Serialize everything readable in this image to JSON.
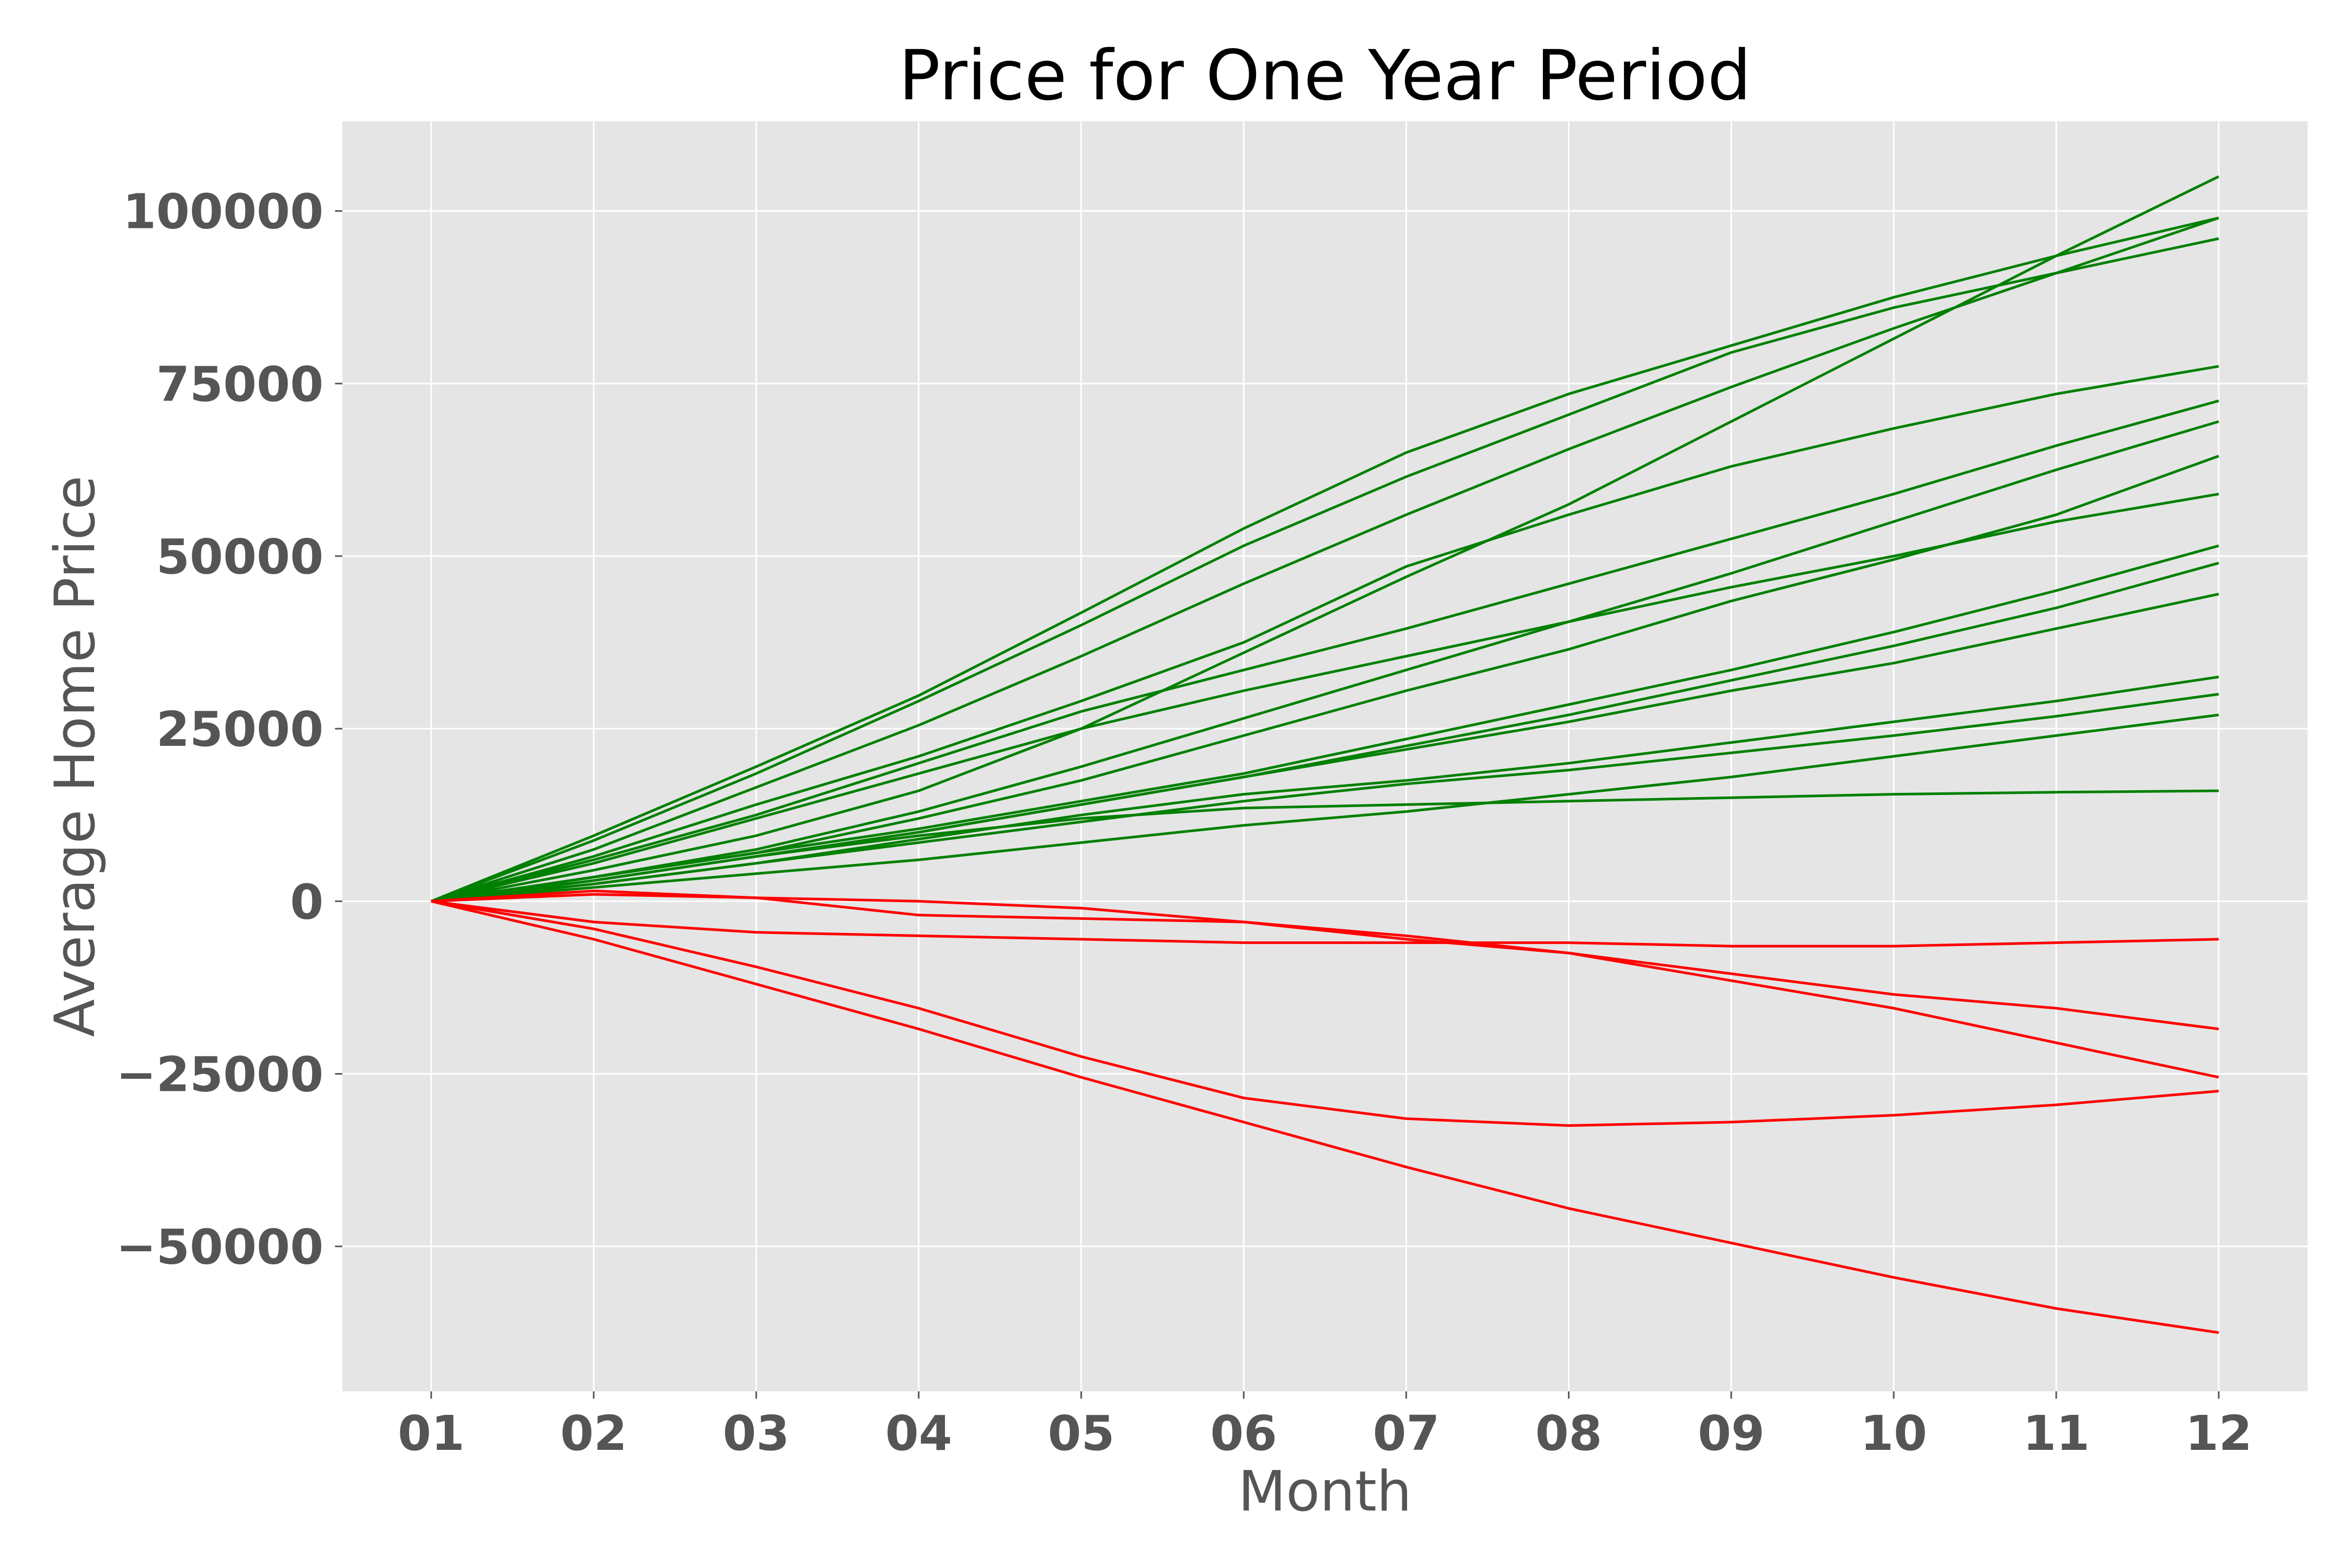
{
  "chart_data": {
    "type": "line",
    "title": "Price for One Year Period",
    "xlabel": "Month",
    "ylabel": "Average Home Price",
    "categories": [
      "01",
      "02",
      "03",
      "04",
      "05",
      "06",
      "07",
      "08",
      "09",
      "10",
      "11",
      "12"
    ],
    "yticks": [
      "100000",
      "75000",
      "50000",
      "25000",
      "0",
      "−25000",
      "−50000"
    ],
    "ytick_values": [
      100000,
      75000,
      50000,
      25000,
      0,
      -25000,
      -50000
    ],
    "ylim": [
      -71000,
      113000
    ],
    "grid": true,
    "style": {
      "background": "#e5e5e5",
      "grid_color": "#ffffff",
      "positive_color": "#008000",
      "negative_color": "#ff0000"
    },
    "series": [
      {
        "color": "#008000",
        "values": [
          0,
          9500,
          19500,
          29800,
          41800,
          54000,
          65000,
          73500,
          80500,
          87500,
          93500,
          99000
        ]
      },
      {
        "color": "#008000",
        "values": [
          0,
          8800,
          18500,
          29000,
          40000,
          51500,
          61500,
          70500,
          79500,
          86000,
          91000,
          96000
        ]
      },
      {
        "color": "#008000",
        "values": [
          0,
          7500,
          16500,
          25500,
          35500,
          46000,
          56000,
          65500,
          74500,
          83000,
          91000,
          99000
        ]
      },
      {
        "color": "#008000",
        "values": [
          0,
          4500,
          9500,
          16000,
          25000,
          36000,
          47000,
          57500,
          69500,
          81500,
          93500,
          105000
        ]
      },
      {
        "color": "#008000",
        "values": [
          0,
          6500,
          14000,
          21000,
          29000,
          37500,
          48500,
          56000,
          63000,
          68500,
          73500,
          77500
        ]
      },
      {
        "color": "#008000",
        "values": [
          0,
          6000,
          12500,
          20000,
          27500,
          33500,
          39500,
          46000,
          52500,
          59000,
          66000,
          72500
        ]
      },
      {
        "color": "#008000",
        "values": [
          0,
          5500,
          12000,
          18500,
          25000,
          30500,
          35500,
          40500,
          47500,
          55000,
          62500,
          69500
        ]
      },
      {
        "color": "#008000",
        "values": [
          0,
          3500,
          7500,
          13000,
          19500,
          26500,
          33500,
          40500,
          45500,
          50000,
          55000,
          59000
        ]
      },
      {
        "color": "#008000",
        "values": [
          0,
          3500,
          7000,
          12000,
          17500,
          24000,
          30500,
          36500,
          43500,
          49500,
          56000,
          64500
        ]
      },
      {
        "color": "#008000",
        "values": [
          0,
          3500,
          7000,
          10500,
          14500,
          18500,
          23500,
          28500,
          33500,
          39000,
          45000,
          51500
        ]
      },
      {
        "color": "#008000",
        "values": [
          0,
          3000,
          6500,
          10000,
          14000,
          18000,
          22500,
          27000,
          32000,
          37000,
          42500,
          49000
        ]
      },
      {
        "color": "#008000",
        "values": [
          0,
          3000,
          6500,
          10000,
          14000,
          18000,
          22000,
          26000,
          30500,
          34500,
          39500,
          44500
        ]
      },
      {
        "color": "#008000",
        "values": [
          0,
          2500,
          5500,
          9000,
          12500,
          15500,
          17500,
          20000,
          23000,
          26000,
          29000,
          32500
        ]
      },
      {
        "color": "#008000",
        "values": [
          0,
          2500,
          5500,
          8500,
          11500,
          14500,
          17000,
          19000,
          21500,
          24000,
          26800,
          30000
        ]
      },
      {
        "color": "#008000",
        "values": [
          0,
          2000,
          4000,
          6000,
          8500,
          11000,
          13000,
          15500,
          18000,
          21000,
          24000,
          27000
        ]
      },
      {
        "color": "#008000",
        "values": [
          0,
          3000,
          6500,
          9500,
          12000,
          13500,
          14000,
          14500,
          15000,
          15500,
          15800,
          16000
        ]
      },
      {
        "color": "#ff0000",
        "values": [
          0,
          1500,
          500,
          -2000,
          -2500,
          -3000,
          -5500,
          -7500,
          -11500,
          -15500,
          -20500,
          -25500
        ]
      },
      {
        "color": "#ff0000",
        "values": [
          0,
          1000,
          500,
          0,
          -1000,
          -3000,
          -5000,
          -7500,
          -10500,
          -13500,
          -15500,
          -18500
        ]
      },
      {
        "color": "#ff0000",
        "values": [
          0,
          -3000,
          -4500,
          -5000,
          -5500,
          -6000,
          -6000,
          -6000,
          -6500,
          -6500,
          -6000,
          -5500
        ]
      },
      {
        "color": "#ff0000",
        "values": [
          0,
          -4000,
          -9500,
          -15500,
          -22500,
          -28500,
          -31500,
          -32500,
          -32000,
          -31000,
          -29500,
          -27500
        ]
      },
      {
        "color": "#ff0000",
        "values": [
          0,
          -5500,
          -12000,
          -18500,
          -25500,
          -32000,
          -38500,
          -44500,
          -49500,
          -54500,
          -59000,
          -62500
        ]
      }
    ]
  }
}
